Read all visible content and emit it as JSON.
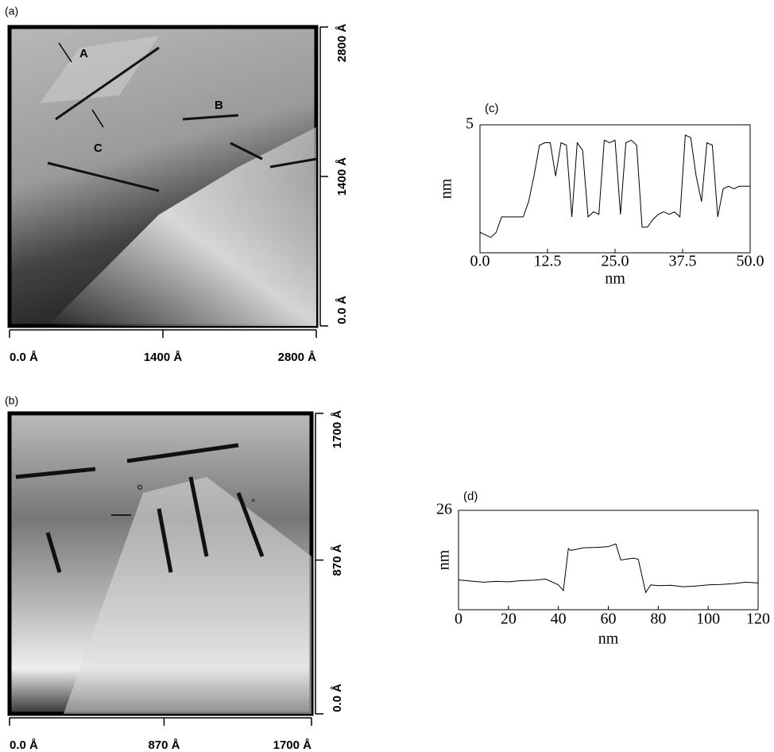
{
  "panels": [
    {
      "label": "(a)",
      "xlim": [
        0,
        2800
      ],
      "ylim": [
        0,
        2800
      ],
      "xticks": [
        {
          "value": 0,
          "label": "0.0 Å"
        },
        {
          "value": 1400,
          "label": "1400 Å"
        },
        {
          "value": 2800,
          "label": "2800 Å"
        }
      ],
      "yticks": [
        {
          "value": 0,
          "label": "0.0 Å"
        },
        {
          "value": 1400,
          "label": "1400 Å"
        },
        {
          "value": 2800,
          "label": "2800 Å"
        }
      ],
      "annotations": [
        "A",
        "B",
        "C"
      ]
    },
    {
      "label": "(b)",
      "xlim": [
        0,
        1700
      ],
      "ylim": [
        0,
        1700
      ],
      "xticks": [
        {
          "value": 0,
          "label": "0.0 Å"
        },
        {
          "value": 870,
          "label": "870 Å"
        },
        {
          "value": 1700,
          "label": "1700 Å"
        }
      ],
      "yticks": [
        {
          "value": 0,
          "label": "0.0 Å"
        },
        {
          "value": 870,
          "label": "870 Å"
        },
        {
          "value": 1700,
          "label": "1700 Å"
        }
      ]
    }
  ],
  "chart_data": [
    {
      "type": "line",
      "label": "(c)",
      "xlabel": "nm",
      "ylabel": "nm",
      "color": "#000000",
      "x": [
        0,
        1,
        2,
        3,
        4,
        5,
        6,
        7,
        8,
        9,
        10,
        11,
        12,
        13,
        14,
        15,
        16,
        17,
        18,
        19,
        20,
        21,
        22,
        23,
        24,
        25,
        26,
        27,
        28,
        29,
        30,
        31,
        32,
        33,
        34,
        35,
        36,
        37,
        38,
        39,
        40,
        41,
        42,
        43,
        44,
        45,
        46,
        47,
        48,
        49,
        50
      ],
      "values": [
        0.8,
        0.7,
        0.6,
        0.8,
        1.4,
        1.4,
        1.4,
        1.4,
        1.4,
        2.0,
        3.0,
        4.2,
        4.3,
        4.3,
        3.0,
        4.3,
        4.2,
        1.4,
        4.3,
        4.0,
        1.4,
        1.6,
        1.5,
        4.4,
        4.3,
        4.4,
        1.5,
        4.3,
        4.4,
        4.2,
        1.0,
        1.0,
        1.3,
        1.5,
        1.6,
        1.5,
        1.6,
        1.4,
        4.6,
        4.5,
        3.0,
        2.0,
        4.3,
        4.2,
        1.4,
        2.5,
        2.6,
        2.5,
        2.6,
        2.6,
        2.6
      ],
      "xlim": [
        0,
        50
      ],
      "ylim": [
        0,
        5
      ],
      "xticks": [
        {
          "value": 0,
          "label": "0.0"
        },
        12.5,
        {
          "value": 25,
          "label": "25.0"
        },
        37.5,
        {
          "value": 50,
          "label": "50.0"
        }
      ],
      "yticks": [
        5
      ]
    },
    {
      "type": "line",
      "label": "(d)",
      "xlabel": "nm",
      "ylabel": "nm",
      "color": "#000000",
      "x": [
        0,
        5,
        10,
        15,
        20,
        25,
        30,
        35,
        40,
        42,
        44,
        45,
        50,
        55,
        60,
        63,
        65,
        70,
        72,
        75,
        77,
        80,
        85,
        90,
        95,
        100,
        105,
        110,
        115,
        120
      ],
      "values": [
        7.8,
        7.5,
        7.2,
        7.4,
        7.3,
        7.6,
        7.7,
        8.0,
        6.5,
        5.0,
        16,
        15.5,
        16.2,
        16.3,
        16.5,
        17.2,
        13,
        13.5,
        13.2,
        4.5,
        6.5,
        6.3,
        6.4,
        6.0,
        6.2,
        6.5,
        6.6,
        6.8,
        7.2,
        7.0
      ],
      "xlim": [
        0,
        120
      ],
      "ylim": [
        0,
        26
      ],
      "xticks": [
        0,
        20,
        40,
        60,
        80,
        100,
        120
      ],
      "yticks": [
        26
      ]
    }
  ]
}
